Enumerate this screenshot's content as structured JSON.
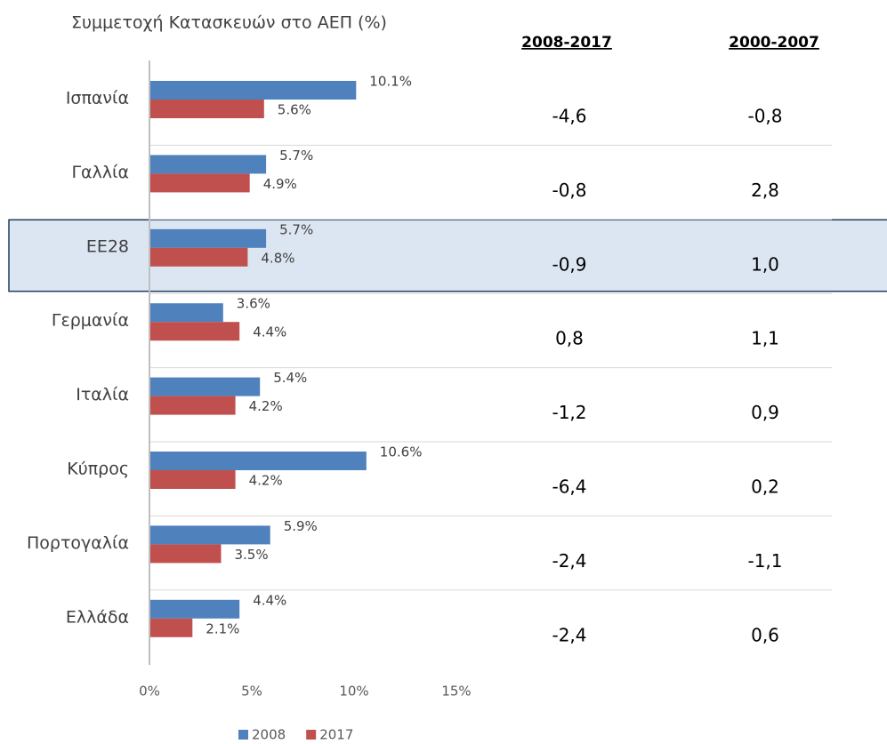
{
  "chart_data": {
    "type": "bar",
    "orientation": "horizontal",
    "title": "Συμμετοχή Κατασκευών στο ΑΕΠ (%)",
    "categories": [
      "Ισπανία",
      "Γαλλία",
      "ΕΕ28",
      "Γερμανία",
      "Ιταλία",
      "Κύπρος",
      "Πορτογαλία",
      "Ελλάδα"
    ],
    "series": [
      {
        "name": "2008",
        "color": "#4f81bd",
        "values": [
          10.1,
          5.7,
          5.7,
          3.6,
          5.4,
          10.6,
          5.9,
          4.4
        ],
        "value_labels": [
          "10.1%",
          "5.7%",
          "5.7%",
          "3.6%",
          "5.4%",
          "10.6%",
          "5.9%",
          "4.4%"
        ]
      },
      {
        "name": "2017",
        "color": "#c0504d",
        "values": [
          5.6,
          4.9,
          4.8,
          4.4,
          4.2,
          4.2,
          3.5,
          2.1
        ],
        "value_labels": [
          "5.6%",
          "4.9%",
          "4.8%",
          "4.4%",
          "4.2%",
          "4.2%",
          "3.5%",
          "2.1%"
        ]
      }
    ],
    "xlim": [
      0,
      15
    ],
    "xticks": [
      {
        "value": 0,
        "label": "0%"
      },
      {
        "value": 5,
        "label": "5%"
      },
      {
        "value": 10,
        "label": "10%"
      },
      {
        "value": 15,
        "label": "15%"
      }
    ],
    "highlight": 2,
    "legend": "bottom"
  },
  "table": {
    "headers": [
      "2008-2017",
      "2000-2007"
    ],
    "rows": [
      [
        "-4,6",
        "-0,8"
      ],
      [
        "-0,8",
        "2,8"
      ],
      [
        "-0,9",
        "1,0"
      ],
      [
        "0,8",
        "1,1"
      ],
      [
        "-1,2",
        "0,9"
      ],
      [
        "-6,4",
        "0,2"
      ],
      [
        "-2,4",
        "-1,1"
      ],
      [
        "-2,4",
        "0,6"
      ]
    ]
  }
}
